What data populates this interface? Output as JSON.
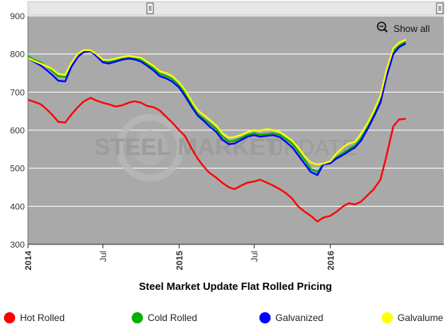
{
  "chart_data": {
    "type": "line",
    "title": "Steel Market Update Flat Rolled Pricing",
    "xlabel": "",
    "ylabel": "",
    "ylim": [
      300,
      900
    ],
    "yticks": [
      "300",
      "400",
      "500",
      "600",
      "700",
      "800",
      "900"
    ],
    "xlim": [
      "2014-01-01",
      "2016-10-01"
    ],
    "xticks": [
      {
        "date": "2014-01-01",
        "label": "2014",
        "bold": true
      },
      {
        "date": "2014-07-01",
        "label": "Jul",
        "bold": false
      },
      {
        "date": "2015-01-01",
        "label": "2015",
        "bold": true
      },
      {
        "date": "2015-07-01",
        "label": "Jul",
        "bold": false
      },
      {
        "date": "2016-01-01",
        "label": "2016",
        "bold": true
      }
    ],
    "plot_background": "#a9a9a9",
    "grid": true,
    "legend_position": "bottom",
    "watermark": {
      "left": "STEEL MARKET",
      "right": "UPDATE"
    },
    "zoom_control": {
      "label": "Show all"
    },
    "series": [
      {
        "name": "Hot Rolled",
        "color": "#ff0000",
        "points": [
          [
            "2014-01-01",
            680
          ],
          [
            "2014-01-15",
            675
          ],
          [
            "2014-02-01",
            668
          ],
          [
            "2014-02-15",
            655
          ],
          [
            "2014-03-01",
            640
          ],
          [
            "2014-03-15",
            622
          ],
          [
            "2014-04-01",
            620
          ],
          [
            "2014-04-15",
            640
          ],
          [
            "2014-05-01",
            660
          ],
          [
            "2014-05-15",
            675
          ],
          [
            "2014-06-01",
            685
          ],
          [
            "2014-06-15",
            678
          ],
          [
            "2014-07-01",
            672
          ],
          [
            "2014-07-15",
            668
          ],
          [
            "2014-08-01",
            662
          ],
          [
            "2014-08-15",
            665
          ],
          [
            "2014-09-01",
            672
          ],
          [
            "2014-09-15",
            676
          ],
          [
            "2014-10-01",
            672
          ],
          [
            "2014-10-15",
            664
          ],
          [
            "2014-11-01",
            660
          ],
          [
            "2014-11-15",
            652
          ],
          [
            "2014-12-01",
            635
          ],
          [
            "2014-12-15",
            620
          ],
          [
            "2015-01-01",
            600
          ],
          [
            "2015-01-15",
            585
          ],
          [
            "2015-02-01",
            550
          ],
          [
            "2015-02-15",
            525
          ],
          [
            "2015-03-01",
            505
          ],
          [
            "2015-03-15",
            488
          ],
          [
            "2015-04-01",
            475
          ],
          [
            "2015-04-15",
            462
          ],
          [
            "2015-05-01",
            450
          ],
          [
            "2015-05-15",
            445
          ],
          [
            "2015-06-01",
            455
          ],
          [
            "2015-06-15",
            462
          ],
          [
            "2015-07-01",
            465
          ],
          [
            "2015-07-15",
            470
          ],
          [
            "2015-08-01",
            462
          ],
          [
            "2015-08-15",
            455
          ],
          [
            "2015-09-01",
            445
          ],
          [
            "2015-09-15",
            435
          ],
          [
            "2015-10-01",
            420
          ],
          [
            "2015-10-15",
            400
          ],
          [
            "2015-11-01",
            385
          ],
          [
            "2015-11-15",
            375
          ],
          [
            "2015-12-01",
            360
          ],
          [
            "2015-12-15",
            370
          ],
          [
            "2016-01-01",
            375
          ],
          [
            "2016-01-15",
            385
          ],
          [
            "2016-02-01",
            400
          ],
          [
            "2016-02-15",
            408
          ],
          [
            "2016-03-01",
            405
          ],
          [
            "2016-03-15",
            412
          ],
          [
            "2016-04-01",
            430
          ],
          [
            "2016-04-15",
            445
          ],
          [
            "2016-05-01",
            470
          ],
          [
            "2016-05-15",
            530
          ],
          [
            "2016-06-01",
            610
          ],
          [
            "2016-06-15",
            628
          ],
          [
            "2016-07-01",
            630
          ]
        ]
      },
      {
        "name": "Cold Rolled",
        "color": "#00b000",
        "points": [
          [
            "2014-01-01",
            795
          ],
          [
            "2014-01-15",
            785
          ],
          [
            "2014-02-01",
            778
          ],
          [
            "2014-02-15",
            768
          ],
          [
            "2014-03-01",
            755
          ],
          [
            "2014-03-15",
            742
          ],
          [
            "2014-04-01",
            740
          ],
          [
            "2014-04-15",
            770
          ],
          [
            "2014-05-01",
            795
          ],
          [
            "2014-05-15",
            808
          ],
          [
            "2014-06-01",
            810
          ],
          [
            "2014-06-15",
            798
          ],
          [
            "2014-07-01",
            782
          ],
          [
            "2014-07-15",
            780
          ],
          [
            "2014-08-01",
            784
          ],
          [
            "2014-08-15",
            788
          ],
          [
            "2014-09-01",
            792
          ],
          [
            "2014-09-15",
            790
          ],
          [
            "2014-10-01",
            786
          ],
          [
            "2014-10-15",
            775
          ],
          [
            "2014-11-01",
            762
          ],
          [
            "2014-11-15",
            748
          ],
          [
            "2014-12-01",
            742
          ],
          [
            "2014-12-15",
            735
          ],
          [
            "2015-01-01",
            718
          ],
          [
            "2015-01-15",
            698
          ],
          [
            "2015-02-01",
            665
          ],
          [
            "2015-02-15",
            642
          ],
          [
            "2015-03-01",
            630
          ],
          [
            "2015-03-15",
            618
          ],
          [
            "2015-04-01",
            603
          ],
          [
            "2015-04-15",
            583
          ],
          [
            "2015-05-01",
            570
          ],
          [
            "2015-05-15",
            572
          ],
          [
            "2015-06-01",
            580
          ],
          [
            "2015-06-15",
            588
          ],
          [
            "2015-07-01",
            592
          ],
          [
            "2015-07-15",
            588
          ],
          [
            "2015-08-01",
            590
          ],
          [
            "2015-08-15",
            592
          ],
          [
            "2015-09-01",
            588
          ],
          [
            "2015-09-15",
            578
          ],
          [
            "2015-10-01",
            565
          ],
          [
            "2015-10-15",
            545
          ],
          [
            "2015-11-01",
            520
          ],
          [
            "2015-11-15",
            498
          ],
          [
            "2015-12-01",
            490
          ],
          [
            "2015-12-15",
            510
          ],
          [
            "2016-01-01",
            515
          ],
          [
            "2016-01-15",
            528
          ],
          [
            "2016-02-01",
            540
          ],
          [
            "2016-02-15",
            550
          ],
          [
            "2016-03-01",
            560
          ],
          [
            "2016-03-15",
            578
          ],
          [
            "2016-04-01",
            610
          ],
          [
            "2016-04-15",
            640
          ],
          [
            "2016-05-01",
            680
          ],
          [
            "2016-05-15",
            745
          ],
          [
            "2016-06-01",
            808
          ],
          [
            "2016-06-15",
            822
          ],
          [
            "2016-07-01",
            832
          ]
        ]
      },
      {
        "name": "Galvanized",
        "color": "#0000ff",
        "points": [
          [
            "2014-01-01",
            790
          ],
          [
            "2014-01-15",
            780
          ],
          [
            "2014-02-01",
            770
          ],
          [
            "2014-02-15",
            758
          ],
          [
            "2014-03-01",
            745
          ],
          [
            "2014-03-15",
            730
          ],
          [
            "2014-04-01",
            728
          ],
          [
            "2014-04-15",
            765
          ],
          [
            "2014-05-01",
            792
          ],
          [
            "2014-05-15",
            805
          ],
          [
            "2014-06-01",
            808
          ],
          [
            "2014-06-15",
            795
          ],
          [
            "2014-07-01",
            778
          ],
          [
            "2014-07-15",
            775
          ],
          [
            "2014-08-01",
            780
          ],
          [
            "2014-08-15",
            785
          ],
          [
            "2014-09-01",
            788
          ],
          [
            "2014-09-15",
            786
          ],
          [
            "2014-10-01",
            780
          ],
          [
            "2014-10-15",
            770
          ],
          [
            "2014-11-01",
            756
          ],
          [
            "2014-11-15",
            742
          ],
          [
            "2014-12-01",
            736
          ],
          [
            "2014-12-15",
            728
          ],
          [
            "2015-01-01",
            712
          ],
          [
            "2015-01-15",
            690
          ],
          [
            "2015-02-01",
            660
          ],
          [
            "2015-02-15",
            638
          ],
          [
            "2015-03-01",
            625
          ],
          [
            "2015-03-15",
            610
          ],
          [
            "2015-04-01",
            595
          ],
          [
            "2015-04-15",
            575
          ],
          [
            "2015-05-01",
            563
          ],
          [
            "2015-05-15",
            565
          ],
          [
            "2015-06-01",
            575
          ],
          [
            "2015-06-15",
            583
          ],
          [
            "2015-07-01",
            587
          ],
          [
            "2015-07-15",
            583
          ],
          [
            "2015-08-01",
            585
          ],
          [
            "2015-08-15",
            587
          ],
          [
            "2015-09-01",
            582
          ],
          [
            "2015-09-15",
            570
          ],
          [
            "2015-10-01",
            555
          ],
          [
            "2015-10-15",
            535
          ],
          [
            "2015-11-01",
            510
          ],
          [
            "2015-11-15",
            490
          ],
          [
            "2015-12-01",
            482
          ],
          [
            "2015-12-15",
            510
          ],
          [
            "2016-01-01",
            513
          ],
          [
            "2016-01-15",
            525
          ],
          [
            "2016-02-01",
            535
          ],
          [
            "2016-02-15",
            545
          ],
          [
            "2016-03-01",
            555
          ],
          [
            "2016-03-15",
            572
          ],
          [
            "2016-04-01",
            605
          ],
          [
            "2016-04-15",
            635
          ],
          [
            "2016-05-01",
            672
          ],
          [
            "2016-05-15",
            738
          ],
          [
            "2016-06-01",
            800
          ],
          [
            "2016-06-15",
            818
          ],
          [
            "2016-07-01",
            828
          ]
        ]
      },
      {
        "name": "Galvalume",
        "color": "#ffff00",
        "points": [
          [
            "2014-01-01",
            790
          ],
          [
            "2014-01-15",
            782
          ],
          [
            "2014-02-01",
            775
          ],
          [
            "2014-02-15",
            768
          ],
          [
            "2014-03-01",
            760
          ],
          [
            "2014-03-15",
            748
          ],
          [
            "2014-04-01",
            745
          ],
          [
            "2014-04-15",
            775
          ],
          [
            "2014-05-01",
            800
          ],
          [
            "2014-05-15",
            810
          ],
          [
            "2014-06-01",
            810
          ],
          [
            "2014-06-15",
            800
          ],
          [
            "2014-07-01",
            785
          ],
          [
            "2014-07-15",
            784
          ],
          [
            "2014-08-01",
            788
          ],
          [
            "2014-08-15",
            792
          ],
          [
            "2014-09-01",
            795
          ],
          [
            "2014-09-15",
            793
          ],
          [
            "2014-10-01",
            790
          ],
          [
            "2014-10-15",
            780
          ],
          [
            "2014-11-01",
            768
          ],
          [
            "2014-11-15",
            755
          ],
          [
            "2014-12-01",
            750
          ],
          [
            "2014-12-15",
            742
          ],
          [
            "2015-01-01",
            725
          ],
          [
            "2015-01-15",
            705
          ],
          [
            "2015-02-01",
            675
          ],
          [
            "2015-02-15",
            652
          ],
          [
            "2015-03-01",
            640
          ],
          [
            "2015-03-15",
            628
          ],
          [
            "2015-04-01",
            612
          ],
          [
            "2015-04-15",
            592
          ],
          [
            "2015-05-01",
            580
          ],
          [
            "2015-05-15",
            582
          ],
          [
            "2015-06-01",
            588
          ],
          [
            "2015-06-15",
            595
          ],
          [
            "2015-07-01",
            600
          ],
          [
            "2015-07-15",
            598
          ],
          [
            "2015-08-01",
            603
          ],
          [
            "2015-08-15",
            600
          ],
          [
            "2015-09-01",
            595
          ],
          [
            "2015-09-15",
            585
          ],
          [
            "2015-10-01",
            572
          ],
          [
            "2015-10-15",
            555
          ],
          [
            "2015-11-01",
            530
          ],
          [
            "2015-11-15",
            515
          ],
          [
            "2015-12-01",
            510
          ],
          [
            "2015-12-15",
            512
          ],
          [
            "2016-01-01",
            518
          ],
          [
            "2016-01-15",
            538
          ],
          [
            "2016-02-01",
            555
          ],
          [
            "2016-02-15",
            565
          ],
          [
            "2016-03-01",
            570
          ],
          [
            "2016-03-15",
            590
          ],
          [
            "2016-04-01",
            620
          ],
          [
            "2016-04-15",
            650
          ],
          [
            "2016-05-01",
            690
          ],
          [
            "2016-05-15",
            755
          ],
          [
            "2016-06-01",
            815
          ],
          [
            "2016-06-15",
            830
          ],
          [
            "2016-07-01",
            838
          ]
        ]
      }
    ]
  }
}
